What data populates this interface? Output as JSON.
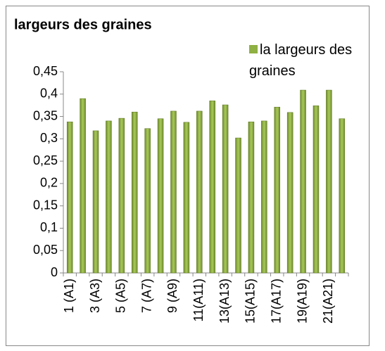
{
  "chart_data": {
    "type": "bar",
    "title": "largeurs des graines",
    "series": [
      {
        "name": "la largeurs des graines",
        "color": "#8fb043",
        "values": [
          0.338,
          0.39,
          0.318,
          0.34,
          0.346,
          0.36,
          0.323,
          0.345,
          0.362,
          0.337,
          0.362,
          0.385,
          0.376,
          0.302,
          0.338,
          0.34,
          0.371,
          0.359,
          0.409,
          0.374,
          0.409,
          0.345
        ]
      }
    ],
    "categories": [
      "1 (A1)",
      null,
      "3 (A3)",
      null,
      "5 (A5)",
      null,
      "7 (A7)",
      null,
      "9 (A9)",
      null,
      "11(A11)",
      null,
      "13(A13)",
      null,
      "15(A15)",
      null,
      "17(A17)",
      null,
      "19(A19)",
      null,
      "21(A21)",
      null
    ],
    "ylim": [
      0,
      0.45
    ],
    "yticks": [
      0,
      {
        "value": 0.05,
        "label": "0,05"
      },
      {
        "value": 0.1,
        "label": "0,1"
      },
      {
        "value": 0.15,
        "label": "0,15"
      },
      {
        "value": 0.2,
        "label": "0,2"
      },
      {
        "value": 0.25,
        "label": "0,25"
      },
      {
        "value": 0.3,
        "label": "0,3"
      },
      {
        "value": 0.35,
        "label": "0,35"
      },
      {
        "value": 0.4,
        "label": "0,4"
      },
      {
        "value": 0.45,
        "label": "0,45"
      }
    ],
    "grid": false,
    "legend": "top-right"
  }
}
